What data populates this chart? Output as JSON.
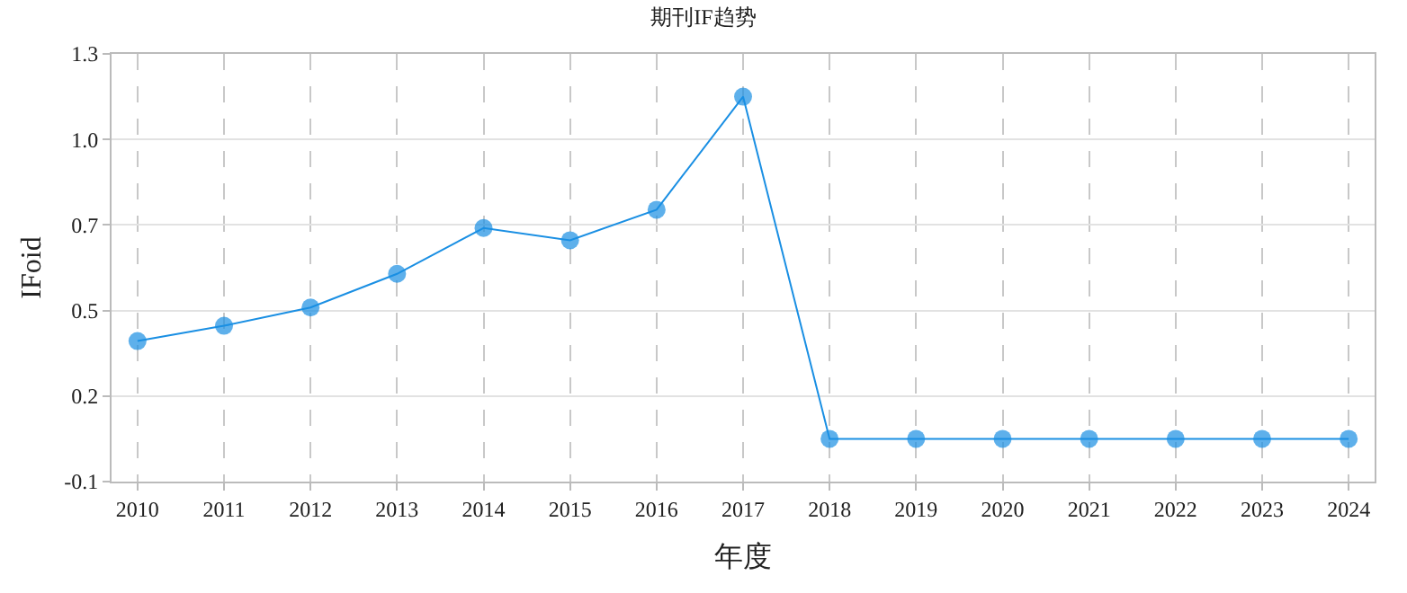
{
  "chart_data": {
    "type": "line",
    "title": "期刊IF趋势",
    "xlabel": "年度",
    "ylabel": "IFoid",
    "categories": [
      "2010",
      "2011",
      "2012",
      "2013",
      "2014",
      "2015",
      "2016",
      "2017",
      "2018",
      "2019",
      "2020",
      "2021",
      "2022",
      "2023",
      "2024"
    ],
    "series": [
      {
        "color": "#1a8fe3",
        "values": [
          0.36,
          0.41,
          0.47,
          0.58,
          0.73,
          0.69,
          0.79,
          1.16,
          0.04,
          0.04,
          0.04,
          0.04,
          0.04,
          0.04,
          0.04
        ]
      }
    ],
    "ylim": [
      -0.1,
      1.3
    ],
    "yticks": [
      {
        "value": -0.1,
        "label": "-0.1"
      },
      {
        "value": 0.18,
        "label": "0.2"
      },
      {
        "value": 0.46,
        "label": "0.5"
      },
      {
        "value": 0.74,
        "label": "0.7"
      },
      {
        "value": 1.02,
        "label": "1.0"
      },
      {
        "value": 1.3,
        "label": "1.3"
      }
    ],
    "grid": true,
    "marker": "circle",
    "line_style": "solid",
    "legend": false
  }
}
